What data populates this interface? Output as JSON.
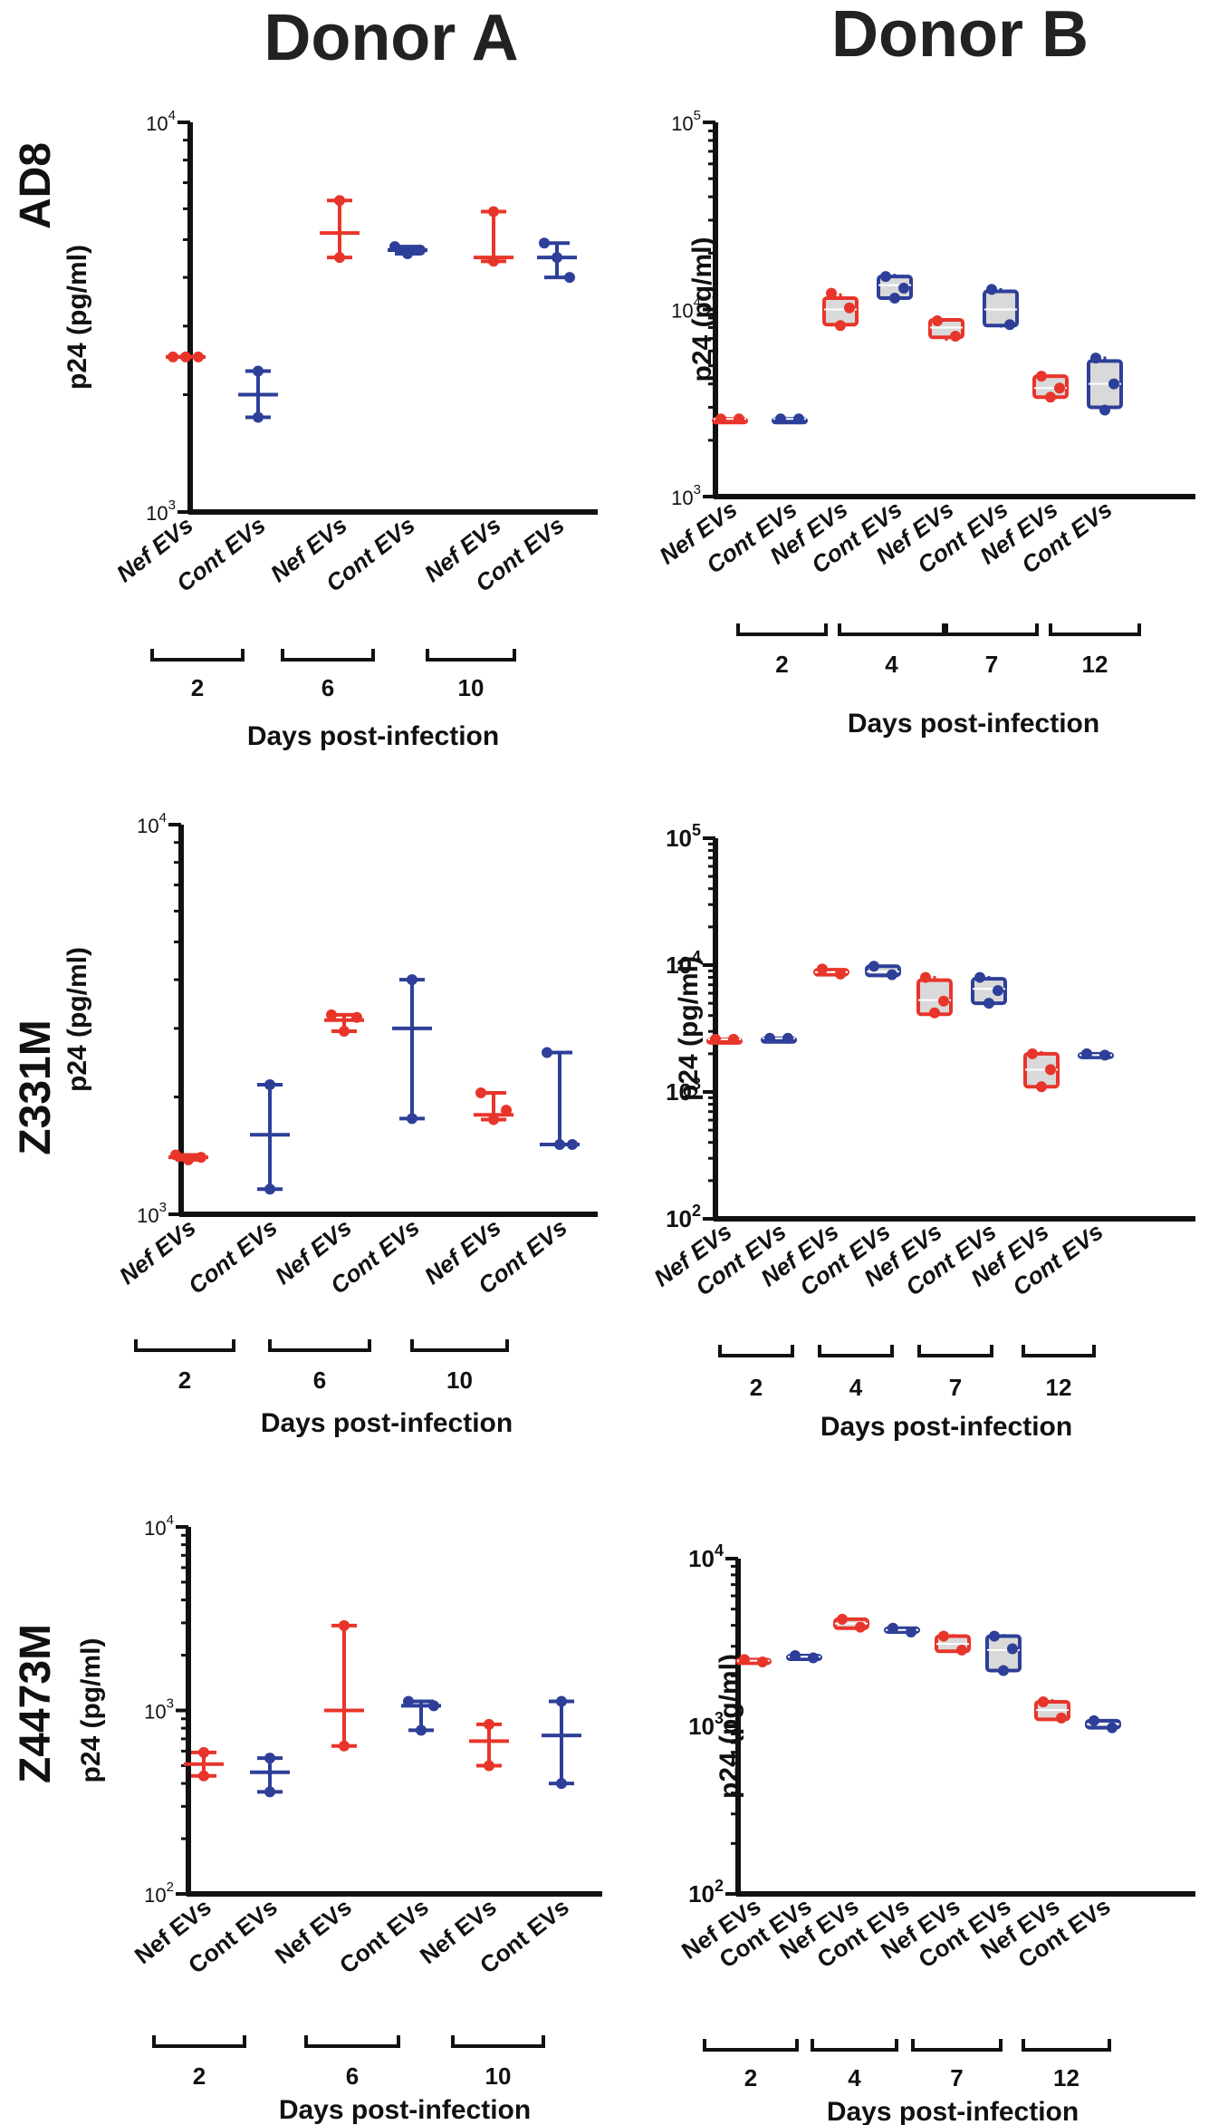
{
  "headers": {
    "left": "Donor A",
    "right": "Donor B"
  },
  "row_labels": [
    "AD8",
    "Z331M",
    "Z4473M"
  ],
  "colors": {
    "nef": "#e8352a",
    "cont": "#2d3f98",
    "box_fill": "#d9d9d9",
    "axis": "#111111"
  },
  "chart_data": [
    {
      "id": "A-AD8",
      "type": "scatter",
      "style": "mean-range",
      "title": "",
      "row_label": "AD8",
      "donor": "Donor A",
      "ylabel": "p24 (pg/ml)",
      "yscale": "log",
      "ylim": [
        1000,
        10000
      ],
      "yticks": [
        {
          "base": "10",
          "exp": "3",
          "value": 1000
        },
        {
          "base": "10",
          "exp": "4",
          "value": 10000
        }
      ],
      "categories": [
        "Nef EVs",
        "Cont EVs",
        "Nef EVs",
        "Cont EVs",
        "Nef EVs",
        "Cont EVs"
      ],
      "groups": [
        "nef",
        "cont",
        "nef",
        "cont",
        "nef",
        "cont"
      ],
      "days": [
        "2",
        "6",
        "10"
      ],
      "xlabel": "Days post-infection",
      "series": [
        {
          "name": "Nef EVs",
          "day": "2",
          "points": [
            2500,
            2500,
            2500
          ],
          "center": 2500
        },
        {
          "name": "Cont EVs",
          "day": "2",
          "points": [
            2300,
            1750
          ],
          "center": 2000
        },
        {
          "name": "Nef EVs",
          "day": "6",
          "points": [
            6300,
            4500
          ],
          "center": 5200
        },
        {
          "name": "Cont EVs",
          "day": "6",
          "points": [
            4800,
            4600,
            4700
          ],
          "center": 4700
        },
        {
          "name": "Nef EVs",
          "day": "10",
          "points": [
            5900,
            4400
          ],
          "center": 4500
        },
        {
          "name": "Cont EVs",
          "day": "10",
          "points": [
            4900,
            4500,
            4000
          ],
          "center": 4500
        }
      ]
    },
    {
      "id": "B-AD8",
      "type": "box",
      "style": "box",
      "title": "",
      "row_label": "AD8",
      "donor": "Donor B",
      "ylabel": "p24 (pg/ml)",
      "yscale": "log",
      "ylim": [
        1000,
        100000
      ],
      "yticks": [
        {
          "base": "10",
          "exp": "3",
          "value": 1000
        },
        {
          "base": "10",
          "exp": "4",
          "value": 10000
        },
        {
          "base": "10",
          "exp": "5",
          "value": 100000
        }
      ],
      "categories": [
        "Nef EVs",
        "Cont EVs",
        "Nef EVs",
        "Cont EVs",
        "Nef EVs",
        "Cont EVs",
        "Nef EVs",
        "Cont EVs"
      ],
      "groups": [
        "nef",
        "cont",
        "nef",
        "cont",
        "nef",
        "cont",
        "nef",
        "cont"
      ],
      "days": [
        "2",
        "4",
        "7",
        "12"
      ],
      "xlabel": "Days post-infection",
      "series": [
        {
          "name": "Nef EVs",
          "day": "2",
          "min": 2600,
          "q1": 2600,
          "median": 2600,
          "q3": 2600,
          "max": 2600,
          "points": [
            2600,
            2600
          ]
        },
        {
          "name": "Cont EVs",
          "day": "2",
          "min": 2600,
          "q1": 2600,
          "median": 2600,
          "q3": 2600,
          "max": 2600,
          "points": [
            2600,
            2600
          ]
        },
        {
          "name": "Nef EVs",
          "day": "4",
          "min": 8000,
          "q1": 8300,
          "median": 10000,
          "q3": 11500,
          "max": 12200,
          "points": [
            12200,
            10200,
            8200
          ]
        },
        {
          "name": "Cont EVs",
          "day": "4",
          "min": 11000,
          "q1": 11500,
          "median": 13500,
          "q3": 15000,
          "max": 15500,
          "points": [
            15000,
            13000,
            11500
          ]
        },
        {
          "name": "Nef EVs",
          "day": "7",
          "min": 6800,
          "q1": 7100,
          "median": 8000,
          "q3": 8800,
          "max": 9000,
          "points": [
            8700,
            7200
          ]
        },
        {
          "name": "Cont EVs",
          "day": "7",
          "min": 8000,
          "q1": 8200,
          "median": 10000,
          "q3": 12500,
          "max": 13000,
          "points": [
            12800,
            8300
          ]
        },
        {
          "name": "Nef EVs",
          "day": "12",
          "min": 3300,
          "q1": 3400,
          "median": 3800,
          "q3": 4400,
          "max": 4500,
          "points": [
            4400,
            3800,
            3400
          ]
        },
        {
          "name": "Cont EVs",
          "day": "12",
          "min": 2800,
          "q1": 3000,
          "median": 4000,
          "q3": 5300,
          "max": 5600,
          "points": [
            5500,
            4000,
            2900
          ]
        }
      ]
    },
    {
      "id": "A-Z331M",
      "type": "scatter",
      "style": "mean-range",
      "title": "",
      "row_label": "Z331M",
      "donor": "Donor A",
      "ylabel": "p24 (pg/ml)",
      "yscale": "log",
      "ylim": [
        1000,
        10000
      ],
      "yticks": [
        {
          "base": "10",
          "exp": "3",
          "value": 1000
        },
        {
          "base": "10",
          "exp": "4",
          "value": 10000
        }
      ],
      "categories": [
        "Nef EVs",
        "Cont EVs",
        "Nef EVs",
        "Cont EVs",
        "Nef EVs",
        "Cont EVs"
      ],
      "groups": [
        "nef",
        "cont",
        "nef",
        "cont",
        "nef",
        "cont"
      ],
      "days": [
        "2",
        "6",
        "10"
      ],
      "xlabel": "Days post-infection",
      "series": [
        {
          "name": "Nef EVs",
          "day": "2",
          "points": [
            1420,
            1380,
            1400
          ],
          "center": 1400
        },
        {
          "name": "Cont EVs",
          "day": "2",
          "points": [
            2150,
            1160
          ],
          "center": 1600
        },
        {
          "name": "Nef EVs",
          "day": "6",
          "points": [
            3250,
            2950,
            3200
          ],
          "center": 3150
        },
        {
          "name": "Cont EVs",
          "day": "6",
          "points": [
            4000,
            1760
          ],
          "center": 3000
        },
        {
          "name": "Nef EVs",
          "day": "10",
          "points": [
            2050,
            1750,
            1850
          ],
          "center": 1800
        },
        {
          "name": "Cont EVs",
          "day": "10",
          "points": [
            2600,
            1510,
            1510
          ],
          "center": 1510
        }
      ]
    },
    {
      "id": "B-Z331M",
      "type": "box",
      "style": "box",
      "title": "",
      "row_label": "Z331M",
      "donor": "Donor B",
      "ylabel": "p24 (pg/ml)",
      "yscale": "log",
      "ylim": [
        100,
        100000
      ],
      "yticks": [
        {
          "base": "10",
          "exp": "2",
          "value": 100
        },
        {
          "base": "10",
          "exp": "3",
          "value": 1000
        },
        {
          "base": "10",
          "exp": "4",
          "value": 10000
        },
        {
          "base": "10",
          "exp": "5",
          "value": 100000
        }
      ],
      "categories": [
        "Nef EVs",
        "Cont EVs",
        "Nef EVs",
        "Cont EVs",
        "Nef EVs",
        "Cont EVs",
        "Nef EVs",
        "Cont EVs"
      ],
      "groups": [
        "nef",
        "cont",
        "nef",
        "cont",
        "nef",
        "cont",
        "nef",
        "cont"
      ],
      "days": [
        "2",
        "4",
        "7",
        "12"
      ],
      "xlabel": "Days post-infection",
      "series": [
        {
          "name": "Nef EVs",
          "day": "2",
          "min": 2600,
          "q1": 2600,
          "median": 2600,
          "q3": 2600,
          "max": 2600,
          "points": [
            2600,
            2600
          ]
        },
        {
          "name": "Cont EVs",
          "day": "2",
          "min": 2650,
          "q1": 2650,
          "median": 2650,
          "q3": 2650,
          "max": 2650,
          "points": [
            2650,
            2650
          ]
        },
        {
          "name": "Nef EVs",
          "day": "4",
          "min": 8200,
          "q1": 8400,
          "median": 8800,
          "q3": 9200,
          "max": 9400,
          "points": [
            9300,
            8500
          ]
        },
        {
          "name": "Cont EVs",
          "day": "4",
          "min": 8000,
          "q1": 8300,
          "median": 8900,
          "q3": 9800,
          "max": 10000,
          "points": [
            9800,
            8400
          ]
        },
        {
          "name": "Nef EVs",
          "day": "7",
          "min": 3900,
          "q1": 4100,
          "median": 5300,
          "q3": 7600,
          "max": 8200,
          "points": [
            8000,
            5200,
            4200
          ]
        },
        {
          "name": "Cont EVs",
          "day": "7",
          "min": 4800,
          "q1": 5000,
          "median": 6500,
          "q3": 7800,
          "max": 8200,
          "points": [
            8000,
            6300,
            5000
          ]
        },
        {
          "name": "Nef EVs",
          "day": "12",
          "min": 1000,
          "q1": 1100,
          "median": 1500,
          "q3": 2000,
          "max": 2100,
          "points": [
            2000,
            1500,
            1100
          ]
        },
        {
          "name": "Cont EVs",
          "day": "12",
          "min": 1900,
          "q1": 1920,
          "median": 1950,
          "q3": 2000,
          "max": 2050,
          "points": [
            2000,
            1950
          ]
        }
      ]
    },
    {
      "id": "A-Z4473M",
      "type": "scatter",
      "style": "mean-range",
      "title": "",
      "row_label": "Z4473M",
      "donor": "Donor A",
      "ylabel": "p24 (pg/ml)",
      "yscale": "log",
      "ylim": [
        100,
        10000
      ],
      "yticks": [
        {
          "base": "10",
          "exp": "2",
          "value": 100
        },
        {
          "base": "10",
          "exp": "3",
          "value": 1000
        },
        {
          "base": "10",
          "exp": "4",
          "value": 10000
        }
      ],
      "categories": [
        "Nef EVs",
        "Cont EVs",
        "Nef EVs",
        "Cont EVs",
        "Nef EVs",
        "Cont EVs"
      ],
      "groups": [
        "nef",
        "cont",
        "nef",
        "cont",
        "nef",
        "cont"
      ],
      "days": [
        "2",
        "6",
        "10"
      ],
      "xlabel": "Days post-infection",
      "series": [
        {
          "name": "Nef EVs",
          "day": "2",
          "points": [
            590,
            440
          ],
          "center": 510
        },
        {
          "name": "Cont EVs",
          "day": "2",
          "points": [
            550,
            360
          ],
          "center": 460
        },
        {
          "name": "Nef EVs",
          "day": "6",
          "points": [
            2900,
            640
          ],
          "center": 1000
        },
        {
          "name": "Cont EVs",
          "day": "6",
          "points": [
            1120,
            780,
            1060
          ],
          "center": 1060
        },
        {
          "name": "Nef EVs",
          "day": "10",
          "points": [
            840,
            500
          ],
          "center": 680
        },
        {
          "name": "Cont EVs",
          "day": "10",
          "points": [
            1120,
            400
          ],
          "center": 730
        }
      ]
    },
    {
      "id": "B-Z4473M",
      "type": "box",
      "style": "box",
      "title": "",
      "row_label": "Z4473M",
      "donor": "Donor B",
      "ylabel": "p24 (pg/ml)",
      "yscale": "log",
      "ylim": [
        100,
        10000
      ],
      "yticks": [
        {
          "base": "10",
          "exp": "2",
          "value": 100
        },
        {
          "base": "10",
          "exp": "3",
          "value": 1000
        },
        {
          "base": "10",
          "exp": "4",
          "value": 10000
        }
      ],
      "categories": [
        "Nef EVs",
        "Cont EVs",
        "Nef EVs",
        "Cont EVs",
        "Nef EVs",
        "Cont EVs",
        "Nef EVs",
        "Cont EVs"
      ],
      "groups": [
        "nef",
        "cont",
        "nef",
        "cont",
        "nef",
        "cont",
        "nef",
        "cont"
      ],
      "days": [
        "2",
        "4",
        "7",
        "12"
      ],
      "xlabel": "Days post-infection",
      "series": [
        {
          "name": "Nef EVs",
          "day": "2",
          "min": 2400,
          "q1": 2420,
          "median": 2460,
          "q3": 2500,
          "max": 2520,
          "points": [
            2500,
            2420
          ]
        },
        {
          "name": "Cont EVs",
          "day": "2",
          "min": 2550,
          "q1": 2560,
          "median": 2600,
          "q3": 2640,
          "max": 2660,
          "points": [
            2640,
            2560
          ]
        },
        {
          "name": "Nef EVs",
          "day": "4",
          "min": 3800,
          "q1": 3850,
          "median": 4100,
          "q3": 4350,
          "max": 4450,
          "points": [
            4350,
            3900
          ]
        },
        {
          "name": "Cont EVs",
          "day": "4",
          "min": 3600,
          "q1": 3650,
          "median": 3750,
          "q3": 3850,
          "max": 3900,
          "points": [
            3850,
            3650
          ]
        },
        {
          "name": "Nef EVs",
          "day": "7",
          "min": 2750,
          "q1": 2800,
          "median": 3100,
          "q3": 3450,
          "max": 3550,
          "points": [
            3450,
            2850
          ]
        },
        {
          "name": "Cont EVs",
          "day": "7",
          "min": 2050,
          "q1": 2150,
          "median": 2850,
          "q3": 3450,
          "max": 3550,
          "points": [
            3450,
            2900,
            2150
          ]
        },
        {
          "name": "Nef EVs",
          "day": "12",
          "min": 1080,
          "q1": 1100,
          "median": 1250,
          "q3": 1400,
          "max": 1450,
          "points": [
            1400,
            1120
          ]
        },
        {
          "name": "Cont EVs",
          "day": "12",
          "min": 970,
          "q1": 980,
          "median": 1030,
          "q3": 1080,
          "max": 1100,
          "points": [
            1080,
            980
          ]
        }
      ]
    }
  ]
}
